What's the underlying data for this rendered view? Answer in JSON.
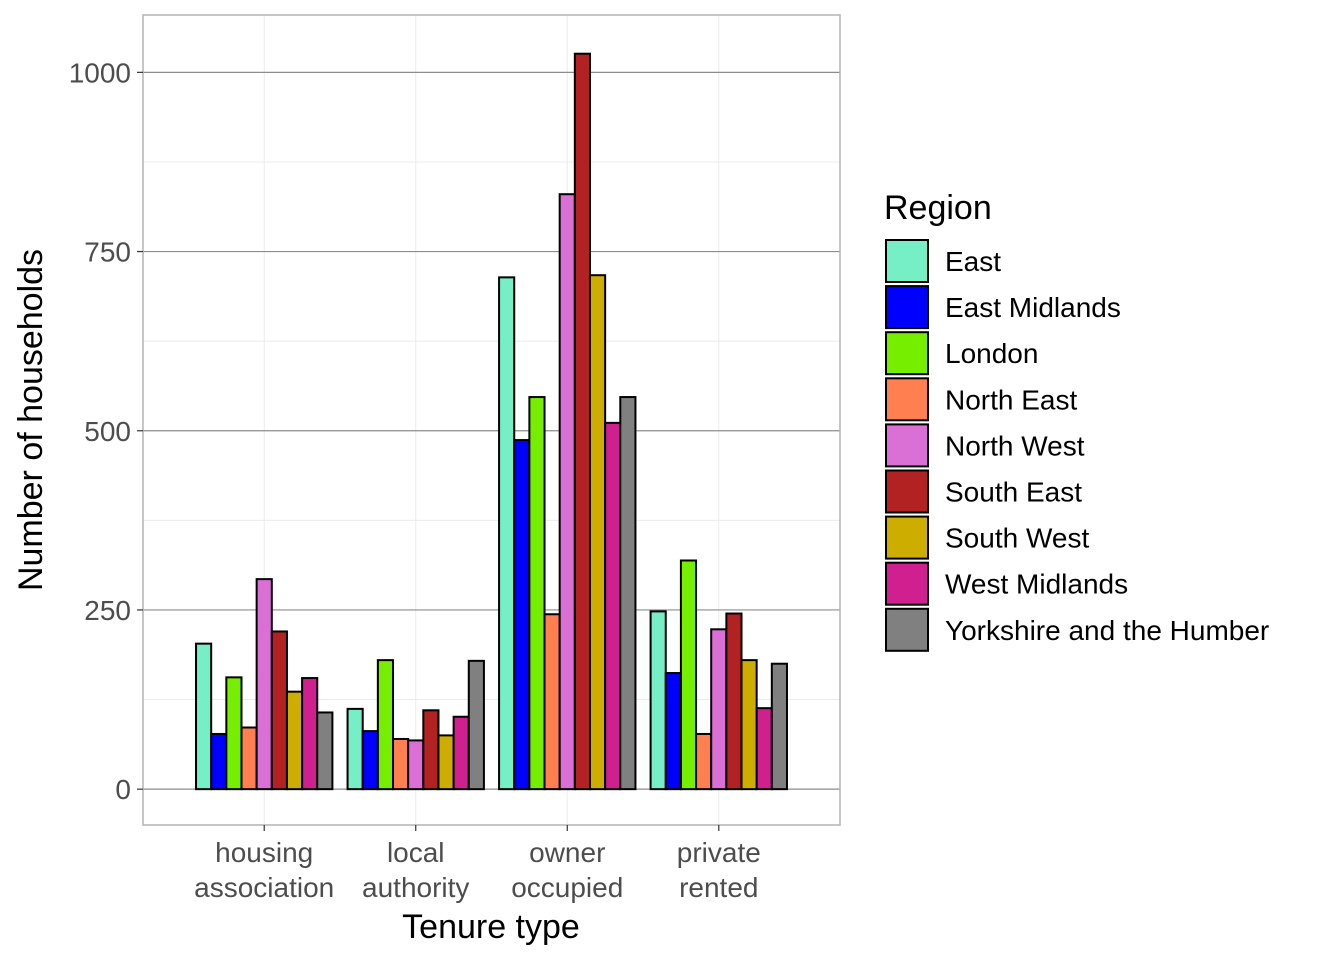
{
  "chart_data": {
    "type": "bar",
    "xlabel": "Tenure type",
    "ylabel": "Number of households",
    "ylim": [
      -50,
      1080
    ],
    "yticks": [
      0,
      250,
      500,
      750,
      1000
    ],
    "grid": true,
    "legend_title": "Region",
    "legend_position": "right",
    "categories": [
      [
        "housing",
        "association"
      ],
      [
        "local",
        "authority"
      ],
      [
        "owner",
        "occupied"
      ],
      [
        "private",
        "rented"
      ]
    ],
    "series": [
      {
        "name": "East",
        "color": "#76EEC6",
        "values": [
          203,
          112,
          714,
          248
        ]
      },
      {
        "name": "East Midlands",
        "color": "#0000FF",
        "values": [
          77,
          81,
          487,
          162
        ]
      },
      {
        "name": "London",
        "color": "#76EE00",
        "values": [
          156,
          180,
          547,
          319
        ]
      },
      {
        "name": "North East",
        "color": "#FF7F50",
        "values": [
          86,
          70,
          244,
          77
        ]
      },
      {
        "name": "North West",
        "color": "#DA70D6",
        "values": [
          293,
          68,
          830,
          223
        ]
      },
      {
        "name": "South East",
        "color": "#B22222",
        "values": [
          220,
          110,
          1026,
          245
        ]
      },
      {
        "name": "South West",
        "color": "#CDAD00",
        "values": [
          136,
          75,
          717,
          180
        ]
      },
      {
        "name": "West Midlands",
        "color": "#D02090",
        "values": [
          155,
          101,
          511,
          113
        ]
      },
      {
        "name": "Yorkshire and the Humber",
        "color": "#808080",
        "values": [
          107,
          179,
          547,
          175
        ]
      }
    ]
  }
}
